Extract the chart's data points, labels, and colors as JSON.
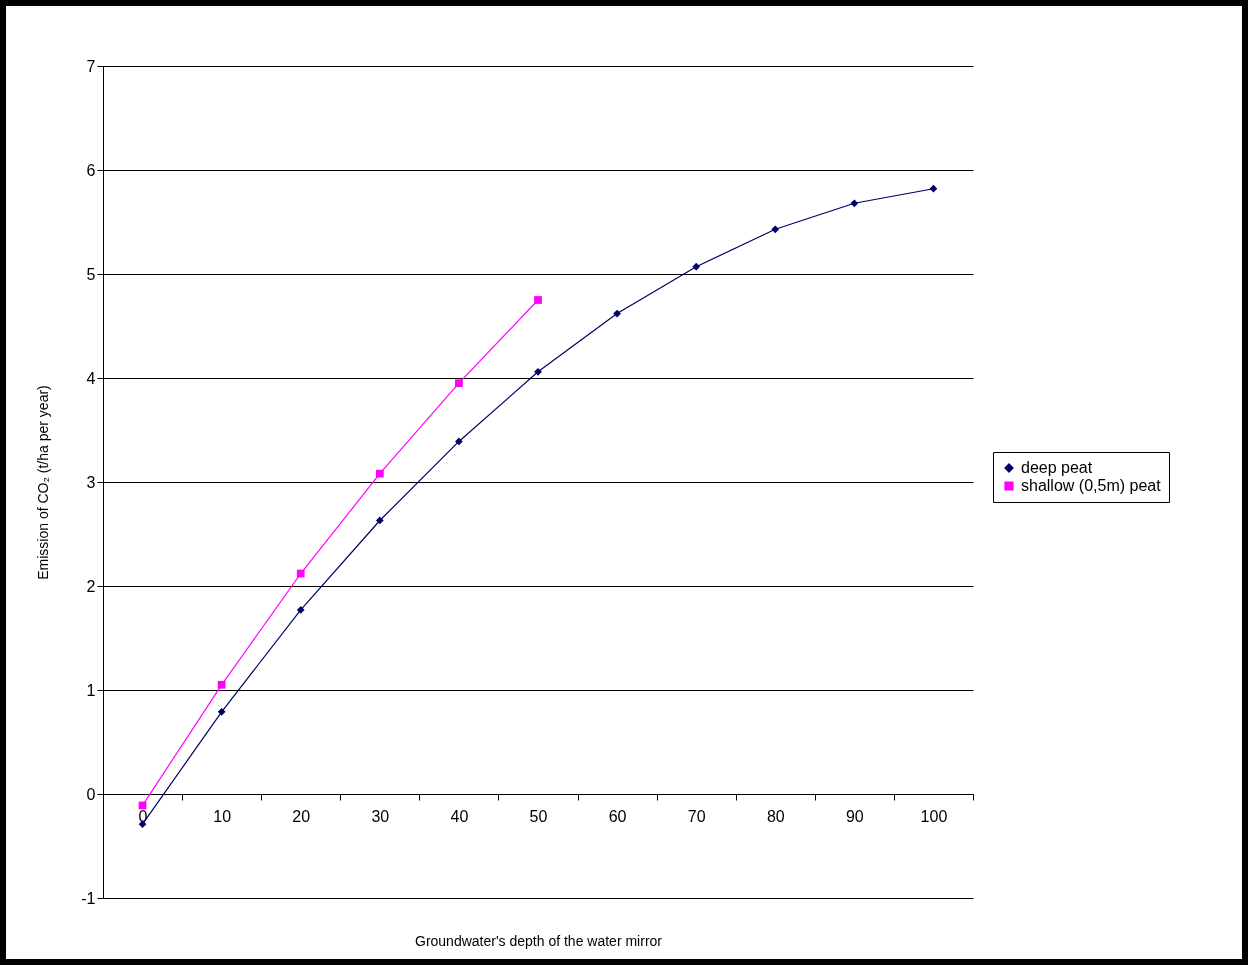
{
  "chart_data": {
    "type": "line",
    "xlabel": "Groundwater's depth of the water mirror",
    "ylabel": "Emission of CO₂ (t/ha per year)",
    "categories": [
      "0",
      "10",
      "20",
      "30",
      "40",
      "50",
      "60",
      "70",
      "80",
      "90",
      "100"
    ],
    "series": [
      {
        "name": "deep peat",
        "color": "#000066",
        "marker": "diamond",
        "values": [
          -0.29,
          0.79,
          1.77,
          2.63,
          3.39,
          4.06,
          4.62,
          5.07,
          5.43,
          5.68,
          5.82
        ]
      },
      {
        "name": "shallow (0,5m) peat",
        "color": "#ff00ff",
        "marker": "square",
        "values": [
          -0.11,
          1.05,
          2.12,
          3.08,
          3.95,
          4.75,
          null,
          null,
          null,
          null,
          null
        ]
      }
    ],
    "ylim": [
      -1,
      7
    ],
    "yticks": [
      -1,
      0,
      1,
      2,
      3,
      4,
      5,
      6,
      7
    ],
    "grid": "y",
    "legend": "right",
    "line_style": "solid"
  }
}
